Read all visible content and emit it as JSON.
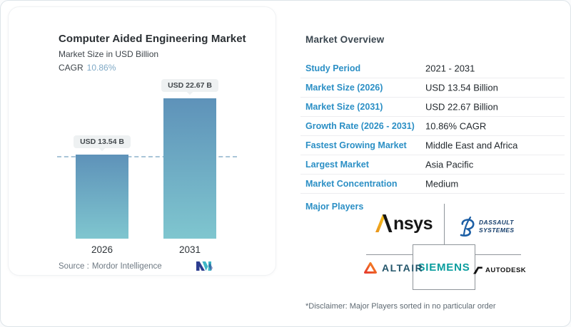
{
  "chart": {
    "title": "Computer Aided Engineering Market",
    "subtitle": "Market Size in USD Billion",
    "cagr_label": "CAGR",
    "cagr_value": "10.86%",
    "source_label": "Source :",
    "source_value": "Mordor Intelligence"
  },
  "chart_data": {
    "type": "bar",
    "categories": [
      "2026",
      "2031"
    ],
    "values": [
      13.54,
      22.67
    ],
    "bar_labels": [
      "USD 13.54 B",
      "USD 22.67 B"
    ],
    "title": "Computer Aided Engineering Market",
    "ylabel": "Market Size in USD Billion",
    "cagr": "10.86%",
    "ylim": [
      0,
      24
    ],
    "grid": false,
    "reference_line_value": 13.54,
    "bar_gradient": [
      "#5E92B9",
      "#7FC6CF"
    ]
  },
  "overview": {
    "title": "Market Overview",
    "rows": [
      {
        "label": "Study Period",
        "value": "2021 - 2031"
      },
      {
        "label": "Market Size (2026)",
        "value": "USD 13.54 Billion"
      },
      {
        "label": "Market Size (2031)",
        "value": "USD 22.67 Billion"
      },
      {
        "label": "Growth Rate (2026 - 2031)",
        "value": "10.86% CAGR"
      },
      {
        "label": "Fastest Growing Market",
        "value": "Middle East and Africa"
      },
      {
        "label": "Largest Market",
        "value": "Asia Pacific"
      },
      {
        "label": "Market Concentration",
        "value": "Medium"
      }
    ],
    "major_players_label": "Major Players",
    "disclaimer": "*Disclaimer: Major Players sorted in no particular order"
  },
  "logos": {
    "ansys_suffix": "nsys",
    "dassault_line1": "DASSAULT",
    "dassault_line2": "SYSTEMES",
    "altair": "ALTAIR",
    "siemens": "SIEMENS",
    "autodesk": "AUTODESK"
  },
  "colors": {
    "accent_blue": "#2B8FC5",
    "cagr_value_blue": "#7FA9C6",
    "siemens_teal": "#0A9D9E",
    "altair_orange": "#EE4B23",
    "ansys_gold": "#F3A81C",
    "dassault_blue": "#1D5FA5",
    "mordor_navy": "#2C3D8F",
    "mordor_teal": "#3FB6C6"
  }
}
